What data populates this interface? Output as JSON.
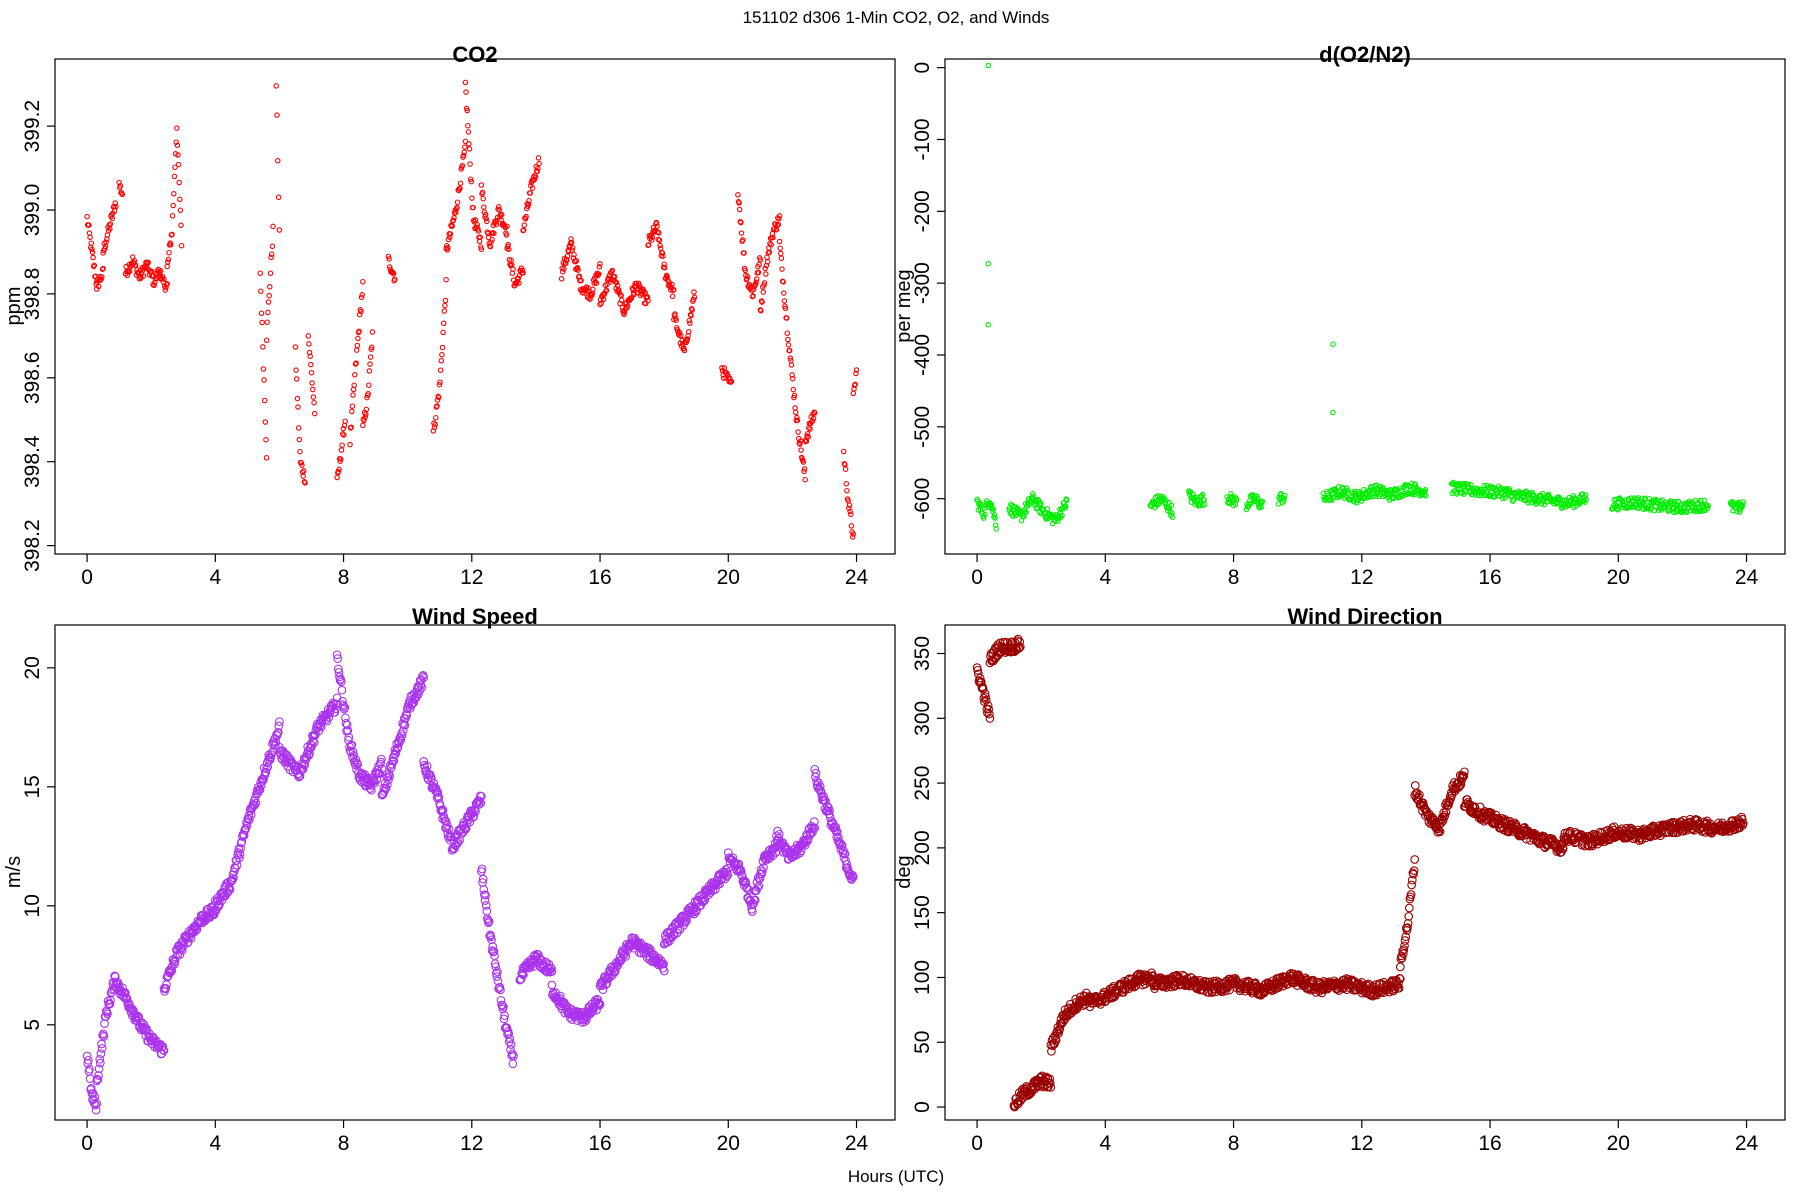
{
  "figure": {
    "main_title": "151102   d306   1-Min CO2, O2, and Winds",
    "x_label": "Hours (UTC)"
  },
  "chart_data": [
    {
      "id": "co2",
      "type": "scatter",
      "title": "CO2",
      "ylabel": "ppm",
      "color": "#ff0000",
      "marker_r": 2.2,
      "xlim": [
        -1,
        25.2
      ],
      "ylim": [
        398.18,
        399.36
      ],
      "xticks": [
        0,
        4,
        8,
        12,
        16,
        20,
        24
      ],
      "yticks": [
        398.2,
        398.4,
        398.6,
        398.8,
        399.0,
        399.2
      ],
      "ytick_labels": [
        "398.2",
        "398.4",
        "398.6",
        "398.8",
        "399.0",
        "399.2"
      ],
      "series": [
        {
          "segments": [
            {
              "x0": 0.0,
              "x1": 0.3,
              "y": [
                398.98,
                398.9,
                398.82
              ]
            },
            {
              "x0": 0.3,
              "x1": 0.5,
              "y": [
                398.82,
                398.85
              ]
            },
            {
              "x0": 0.5,
              "x1": 0.9,
              "y": [
                398.9,
                399.02
              ]
            },
            {
              "x0": 1.0,
              "x1": 1.1,
              "y": [
                399.06,
                399.04
              ]
            },
            {
              "x0": 1.2,
              "x1": 2.3,
              "y": [
                398.85,
                398.88,
                398.84,
                398.87,
                398.83,
                398.86
              ]
            },
            {
              "x0": 2.3,
              "x1": 2.5,
              "y": [
                398.83,
                398.82
              ]
            },
            {
              "x0": 2.5,
              "x1": 2.95,
              "y": [
                398.86,
                398.95,
                399.2,
                398.92
              ]
            },
            {
              "x0": 5.4,
              "x1": 5.6,
              "y": [
                398.85,
                398.42
              ]
            },
            {
              "x0": 5.6,
              "x1": 5.8,
              "y": [
                398.7,
                398.95
              ]
            },
            {
              "x0": 5.9,
              "x1": 6.0,
              "y": [
                399.3,
                398.95
              ]
            },
            {
              "x0": 6.5,
              "x1": 6.8,
              "y": [
                398.66,
                398.4,
                398.36
              ]
            },
            {
              "x0": 6.9,
              "x1": 7.1,
              "y": [
                398.7,
                398.52
              ]
            },
            {
              "x0": 7.8,
              "x1": 8.05,
              "y": [
                398.35,
                398.5
              ]
            },
            {
              "x0": 8.2,
              "x1": 8.6,
              "y": [
                398.45,
                398.65,
                398.82
              ]
            },
            {
              "x0": 8.6,
              "x1": 8.9,
              "y": [
                398.48,
                398.55,
                398.7
              ]
            },
            {
              "x0": 9.4,
              "x1": 9.6,
              "y": [
                398.88,
                398.84
              ]
            },
            {
              "x0": 10.8,
              "x1": 11.2,
              "y": [
                398.47,
                398.58,
                398.82
              ]
            },
            {
              "x0": 11.2,
              "x1": 11.8,
              "y": [
                398.9,
                399.0,
                399.15
              ]
            },
            {
              "x0": 11.8,
              "x1": 12.3,
              "y": [
                399.3,
                398.98,
                398.92
              ]
            },
            {
              "x0": 12.3,
              "x1": 13.1,
              "y": [
                399.05,
                398.92,
                399.0,
                398.95
              ]
            },
            {
              "x0": 13.1,
              "x1": 13.6,
              "y": [
                398.92,
                398.82,
                398.86
              ]
            },
            {
              "x0": 13.6,
              "x1": 14.1,
              "y": [
                398.95,
                399.05,
                399.12
              ]
            },
            {
              "x0": 14.8,
              "x1": 16.0,
              "y": [
                398.85,
                398.92,
                398.82,
                398.8,
                398.86
              ]
            },
            {
              "x0": 16.0,
              "x1": 17.5,
              "y": [
                398.78,
                398.85,
                398.76,
                398.82,
                398.78
              ]
            },
            {
              "x0": 17.5,
              "x1": 18.3,
              "y": [
                398.92,
                398.96,
                398.85,
                398.8
              ]
            },
            {
              "x0": 18.3,
              "x1": 18.95,
              "y": [
                398.75,
                398.66,
                398.8
              ]
            },
            {
              "x0": 19.8,
              "x1": 20.1,
              "y": [
                398.62,
                398.58
              ]
            },
            {
              "x0": 20.3,
              "x1": 21.0,
              "y": [
                399.05,
                398.85,
                398.8,
                398.88
              ]
            },
            {
              "x0": 21.0,
              "x1": 21.6,
              "y": [
                398.76,
                398.88,
                398.95,
                398.98
              ]
            },
            {
              "x0": 21.6,
              "x1": 22.4,
              "y": [
                398.92,
                398.7,
                398.5,
                398.36
              ]
            },
            {
              "x0": 22.4,
              "x1": 22.7,
              "y": [
                398.45,
                398.52
              ]
            },
            {
              "x0": 23.6,
              "x1": 23.9,
              "y": [
                398.42,
                398.3,
                398.22
              ]
            },
            {
              "x0": 23.9,
              "x1": 24.0,
              "y": [
                398.55,
                398.62
              ]
            }
          ]
        }
      ]
    },
    {
      "id": "o2",
      "type": "scatter",
      "title": "d(O2/N2)",
      "ylabel": "per meg",
      "color": "#00ee00",
      "marker_r": 2.2,
      "xlim": [
        -1,
        25.2
      ],
      "ylim": [
        -677,
        12
      ],
      "xticks": [
        0,
        4,
        8,
        12,
        16,
        20,
        24
      ],
      "yticks": [
        0,
        -100,
        -200,
        -300,
        -400,
        -500,
        -600
      ],
      "ytick_labels": [
        "0",
        "-100",
        "-200",
        "-300",
        "-400",
        "-500",
        "-600"
      ],
      "outliers": [
        {
          "x": 0.35,
          "y": 3
        },
        {
          "x": 0.35,
          "y": -273
        },
        {
          "x": 0.35,
          "y": -358
        },
        {
          "x": 11.1,
          "y": -385
        },
        {
          "x": 11.1,
          "y": -480
        }
      ],
      "series": [
        {
          "segments": [
            {
              "x0": 0.0,
              "x1": 0.6,
              "y": [
                -605,
                -620,
                -600,
                -635
              ]
            },
            {
              "x0": 1.0,
              "x1": 2.8,
              "y": [
                -612,
                -625,
                -600,
                -618,
                -630,
                -605
              ]
            },
            {
              "x0": 5.4,
              "x1": 6.1,
              "y": [
                -610,
                -600,
                -618
              ]
            },
            {
              "x0": 6.6,
              "x1": 7.1,
              "y": [
                -595,
                -605,
                -600
              ]
            },
            {
              "x0": 7.8,
              "x1": 8.1,
              "y": [
                -598,
                -605
              ]
            },
            {
              "x0": 8.4,
              "x1": 8.9,
              "y": [
                -608,
                -600,
                -610
              ]
            },
            {
              "x0": 9.4,
              "x1": 9.6,
              "y": [
                -600,
                -598
              ]
            },
            {
              "x0": 10.8,
              "x1": 14.0,
              "y": [
                -600,
                -590,
                -598,
                -588,
                -595,
                -585,
                -590
              ]
            },
            {
              "x0": 14.8,
              "x1": 16.6,
              "y": [
                -585,
                -588,
                -590,
                -592
              ]
            },
            {
              "x0": 16.6,
              "x1": 19.0,
              "y": [
                -595,
                -598,
                -602,
                -606,
                -600
              ]
            },
            {
              "x0": 19.8,
              "x1": 22.8,
              "y": [
                -608,
                -605,
                -610,
                -612,
                -608
              ]
            },
            {
              "x0": 23.5,
              "x1": 23.9,
              "y": [
                -610,
                -615,
                -608
              ]
            }
          ]
        }
      ]
    },
    {
      "id": "wind_speed",
      "type": "scatter",
      "title": "Wind Speed",
      "ylabel": "m/s",
      "color": "#aa33ee",
      "marker_r": 3.8,
      "xlim": [
        -1,
        25.2
      ],
      "ylim": [
        1.0,
        21.8
      ],
      "xticks": [
        0,
        4,
        8,
        12,
        16,
        20,
        24
      ],
      "yticks": [
        5,
        10,
        15,
        20
      ],
      "ytick_labels": [
        "5",
        "10",
        "15",
        "20"
      ],
      "series": [
        {
          "segments": [
            {
              "x0": 0.0,
              "x1": 0.3,
              "y": [
                3.8,
                2.0,
                1.6
              ]
            },
            {
              "x0": 0.3,
              "x1": 0.9,
              "y": [
                2.5,
                5.5,
                7.0
              ]
            },
            {
              "x0": 0.9,
              "x1": 2.4,
              "y": [
                6.8,
                6.0,
                5.0,
                4.3,
                3.9
              ]
            },
            {
              "x0": 2.4,
              "x1": 4.0,
              "y": [
                6.5,
                8.0,
                8.8,
                9.5,
                9.8
              ]
            },
            {
              "x0": 4.0,
              "x1": 6.0,
              "y": [
                10.0,
                11.0,
                13.5,
                15.5,
                17.5
              ]
            },
            {
              "x0": 6.0,
              "x1": 7.8,
              "y": [
                16.5,
                15.5,
                17.5,
                18.5
              ]
            },
            {
              "x0": 7.8,
              "x1": 9.2,
              "y": [
                20.5,
                17.0,
                15.5,
                15.0,
                16.0
              ]
            },
            {
              "x0": 9.2,
              "x1": 10.5,
              "y": [
                14.5,
                16.5,
                18.5,
                19.5
              ]
            },
            {
              "x0": 10.5,
              "x1": 12.3,
              "y": [
                16.0,
                14.5,
                12.5,
                13.5,
                14.5
              ]
            },
            {
              "x0": 12.3,
              "x1": 13.3,
              "y": [
                11.5,
                9.0,
                7.0,
                5.0,
                3.5
              ]
            },
            {
              "x0": 13.5,
              "x1": 14.5,
              "y": [
                7.0,
                7.8,
                7.2
              ]
            },
            {
              "x0": 14.5,
              "x1": 16.0,
              "y": [
                6.5,
                5.5,
                5.3,
                6.0
              ]
            },
            {
              "x0": 16.0,
              "x1": 18.0,
              "y": [
                6.5,
                7.5,
                8.5,
                8.0,
                7.5
              ]
            },
            {
              "x0": 18.0,
              "x1": 20.0,
              "y": [
                8.5,
                9.5,
                10.5,
                11.5
              ]
            },
            {
              "x0": 20.0,
              "x1": 21.5,
              "y": [
                12.0,
                11.5,
                10.0,
                12.0,
                12.5
              ]
            },
            {
              "x0": 21.5,
              "x1": 22.7,
              "y": [
                13.0,
                12.0,
                12.5,
                13.5
              ]
            },
            {
              "x0": 22.7,
              "x1": 23.9,
              "y": [
                15.5,
                14.0,
                12.5,
                11.0
              ]
            }
          ]
        }
      ]
    },
    {
      "id": "wind_direction",
      "type": "scatter",
      "title": "Wind Direction",
      "ylabel": "deg",
      "color": "#990000",
      "marker_r": 3.8,
      "xlim": [
        -1,
        25.2
      ],
      "ylim": [
        -10,
        372
      ],
      "xticks": [
        0,
        4,
        8,
        12,
        16,
        20,
        24
      ],
      "yticks": [
        0,
        50,
        100,
        150,
        200,
        250,
        300,
        350
      ],
      "ytick_labels": [
        "0",
        "50",
        "100",
        "150",
        "200",
        "250",
        "300",
        "350"
      ],
      "series": [
        {
          "segments": [
            {
              "x0": 0.0,
              "x1": 0.4,
              "y": [
                338,
                320,
                300
              ]
            },
            {
              "x0": 0.4,
              "x1": 1.35,
              "y": [
                345,
                355,
                355,
                357
              ]
            },
            {
              "x0": 1.15,
              "x1": 2.3,
              "y": [
                2,
                10,
                15,
                20,
                18
              ]
            },
            {
              "x0": 2.3,
              "x1": 3.5,
              "y": [
                45,
                70,
                80,
                85
              ]
            },
            {
              "x0": 3.5,
              "x1": 5.5,
              "y": [
                80,
                85,
                92,
                98,
                100
              ]
            },
            {
              "x0": 5.5,
              "x1": 13.2,
              "y": [
                95,
                98,
                92,
                95,
                90,
                100,
                92,
                95,
                90,
                95
              ]
            },
            {
              "x0": 13.2,
              "x1": 13.65,
              "y": [
                110,
                140,
                190
              ]
            },
            {
              "x0": 13.65,
              "x1": 15.2,
              "y": [
                245,
                225,
                215,
                245,
                255
              ]
            },
            {
              "x0": 15.2,
              "x1": 18.3,
              "y": [
                235,
                225,
                218,
                212,
                205,
                200
              ]
            },
            {
              "x0": 18.3,
              "x1": 23.9,
              "y": [
                210,
                205,
                212,
                210,
                215,
                218,
                215,
                220
              ]
            }
          ]
        }
      ]
    }
  ]
}
